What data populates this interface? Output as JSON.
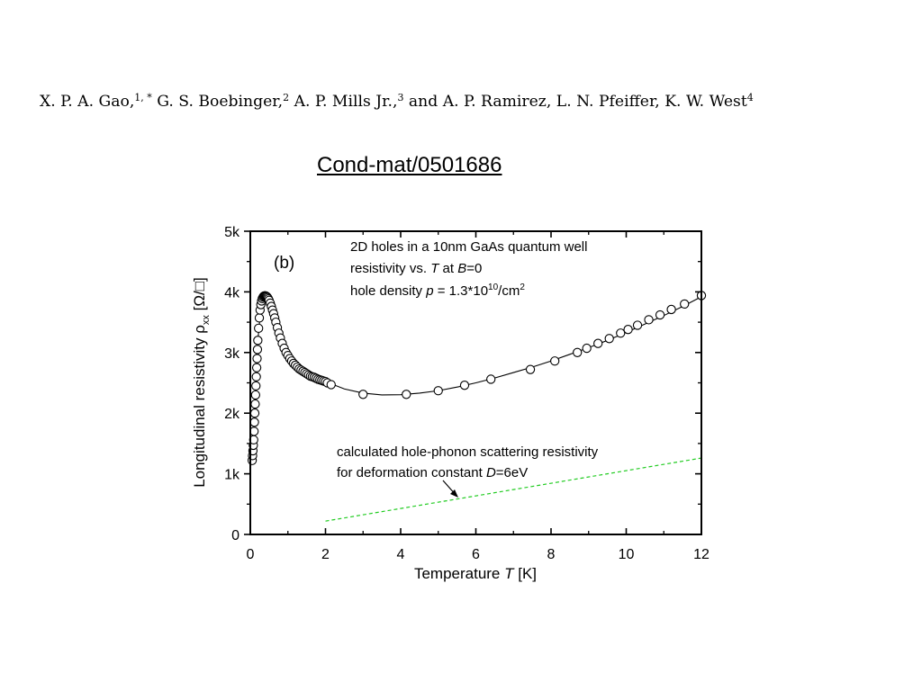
{
  "header": {
    "authors": [
      {
        "name": "X. P. A. Gao,",
        "sup": "1, *"
      },
      {
        "name": "G. S. Boebinger,",
        "sup": "2"
      },
      {
        "name": "A. P. Mills Jr.,",
        "sup": "3"
      },
      {
        "name": "and A. P. Ramirez, L. N. Pfeiffer, K. W. West",
        "sup": "4"
      }
    ],
    "arxiv_id": "Cond-mat/0501686"
  },
  "chart_data": {
    "type": "scatter",
    "panel_label": "(b)",
    "xlabel": "Temperature T [K]",
    "ylabel": "Longitudinal resistivity ρxx [Ω/□]",
    "xlim": [
      0,
      12
    ],
    "ylim": [
      0,
      5000
    ],
    "xticks": [
      0,
      2,
      4,
      6,
      8,
      10,
      12
    ],
    "xtick_labels": [
      "0",
      "2",
      "4",
      "6",
      "8",
      "10",
      "12"
    ],
    "yticks": [
      0,
      1000,
      2000,
      3000,
      4000,
      5000
    ],
    "ytick_labels": [
      "0",
      "1k",
      "2k",
      "3k",
      "4k",
      "5k"
    ],
    "annotation": {
      "lines": [
        "2D holes in a 10nm GaAs quantum well",
        "resistivity vs. T at B=0",
        "hole density p = 1.3*10^10/cm^2"
      ]
    },
    "phonon_annotation": {
      "lines": [
        "calculated hole-phonon scattering resistivity",
        "for deformation constant D=6eV"
      ]
    },
    "series": [
      {
        "kind": "markers",
        "x": [
          0.05,
          0.06,
          0.07,
          0.08,
          0.09,
          0.1,
          0.11,
          0.12,
          0.13,
          0.14,
          0.15,
          0.16,
          0.17,
          0.18,
          0.19,
          0.2,
          0.22,
          0.24,
          0.26,
          0.28,
          0.3,
          0.32,
          0.34,
          0.36,
          0.38,
          0.4,
          0.42,
          0.44,
          0.46,
          0.48,
          0.5,
          0.53,
          0.56,
          0.59,
          0.62,
          0.65,
          0.68,
          0.72,
          0.76,
          0.8,
          0.85,
          0.9,
          0.95,
          1.0,
          1.05,
          1.1,
          1.15,
          1.2,
          1.25,
          1.3,
          1.35,
          1.4,
          1.45,
          1.5,
          1.55,
          1.6,
          1.65,
          1.7,
          1.75,
          1.8,
          1.85,
          1.9,
          1.95,
          2.0,
          2.05,
          2.15,
          3.0,
          4.15,
          5.0,
          5.7,
          6.4,
          7.45,
          8.1,
          8.7,
          8.95,
          9.25,
          9.55,
          9.85,
          10.05,
          10.3,
          10.6,
          10.9,
          11.2,
          11.55,
          12.0
        ],
        "y": [
          1220,
          1300,
          1380,
          1470,
          1560,
          1700,
          1850,
          2000,
          2150,
          2300,
          2450,
          2600,
          2750,
          2900,
          3050,
          3200,
          3400,
          3570,
          3700,
          3790,
          3850,
          3890,
          3915,
          3930,
          3935,
          3935,
          3930,
          3920,
          3905,
          3885,
          3860,
          3815,
          3760,
          3700,
          3640,
          3570,
          3500,
          3410,
          3320,
          3240,
          3150,
          3070,
          3000,
          2950,
          2900,
          2860,
          2820,
          2790,
          2760,
          2730,
          2710,
          2690,
          2670,
          2650,
          2630,
          2610,
          2600,
          2590,
          2575,
          2560,
          2550,
          2540,
          2530,
          2520,
          2500,
          2470,
          2310,
          2310,
          2370,
          2460,
          2560,
          2720,
          2860,
          3000,
          3070,
          3150,
          3230,
          3320,
          3380,
          3450,
          3540,
          3620,
          3710,
          3800,
          3940
        ]
      },
      {
        "kind": "fit-line",
        "x": [
          0.0,
          0.1,
          0.2,
          0.3,
          0.4,
          0.5,
          0.7,
          1.0,
          1.4,
          2.0,
          2.5,
          3.0,
          3.5,
          4.0,
          4.5,
          5.0,
          5.5,
          6.0,
          6.5,
          7.0,
          7.5,
          8.0,
          8.5,
          9.0,
          9.5,
          10.0,
          10.5,
          11.0,
          11.5,
          12.0
        ],
        "y": [
          1050,
          1700,
          3200,
          3850,
          3935,
          3860,
          3450,
          2950,
          2690,
          2520,
          2400,
          2330,
          2300,
          2305,
          2330,
          2370,
          2430,
          2500,
          2580,
          2670,
          2760,
          2860,
          2970,
          3080,
          3200,
          3330,
          3470,
          3610,
          3760,
          3920
        ]
      },
      {
        "kind": "dashed-line",
        "x": [
          2.0,
          12.0
        ],
        "y": [
          220,
          1260
        ]
      }
    ],
    "grid": false,
    "legend": "none",
    "colors": {
      "markers": "#000000",
      "phonon_line": "#22cc22"
    }
  }
}
